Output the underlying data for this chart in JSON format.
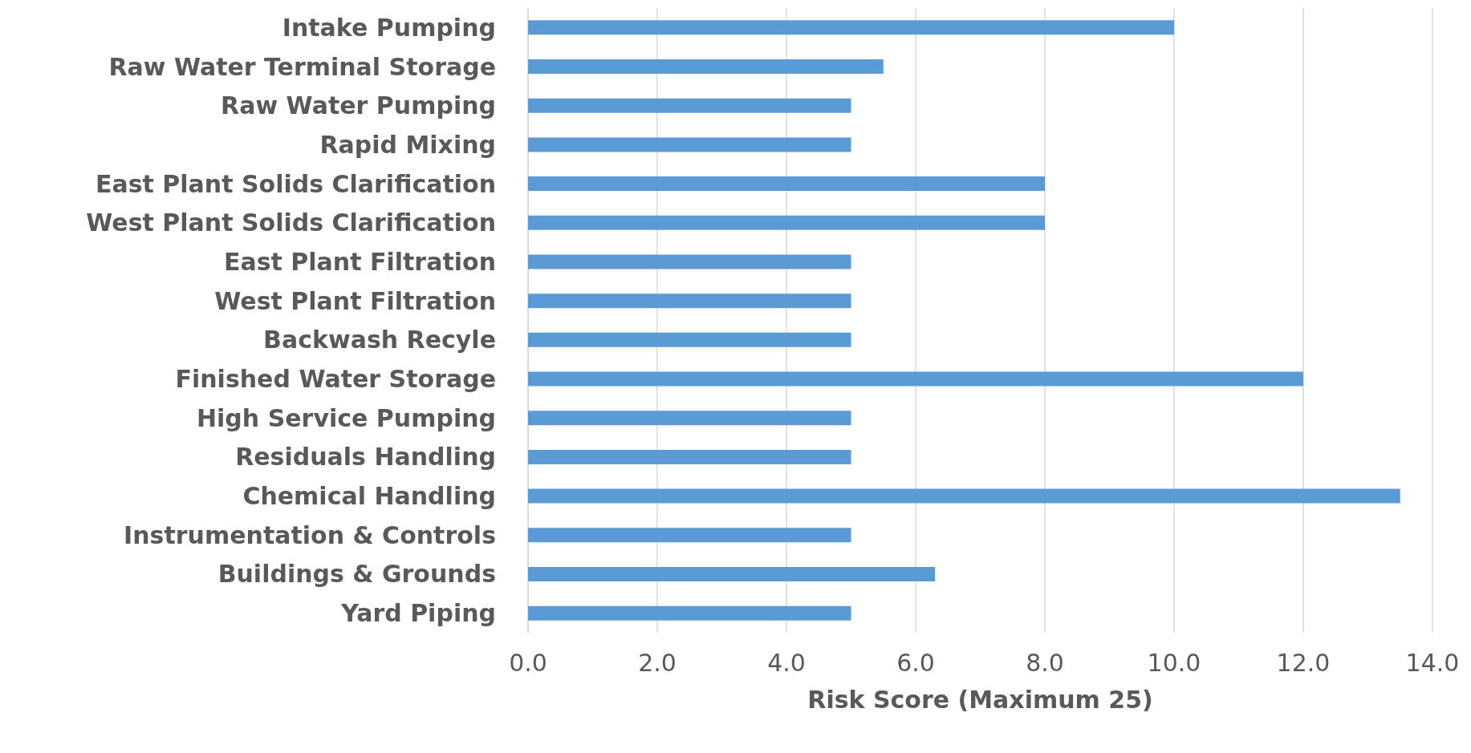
{
  "chart_data": {
    "type": "bar",
    "orientation": "horizontal",
    "xlabel": "Risk Score (Maximum 25)",
    "categories": [
      "Intake Pumping",
      "Raw Water Terminal Storage",
      "Raw Water Pumping",
      "Rapid Mixing",
      "East Plant Solids Clarification",
      "West Plant Solids Clarification",
      "East Plant Filtration",
      "West Plant Filtration",
      "Backwash Recyle",
      "Finished Water Storage",
      "High Service Pumping",
      "Residuals Handling",
      "Chemical Handling",
      "Instrumentation & Controls",
      "Buildings & Grounds",
      "Yard Piping"
    ],
    "values": [
      10,
      5.5,
      5,
      5,
      8,
      8,
      5,
      5,
      5,
      12,
      5,
      5,
      13.5,
      5,
      6.3,
      5
    ],
    "color": "#5b9bd5",
    "xlim": [
      0,
      14
    ],
    "xticks": [
      {
        "value": 0,
        "label": "0.0"
      },
      {
        "value": 2,
        "label": "2.0"
      },
      {
        "value": 4,
        "label": "4.0"
      },
      {
        "value": 6,
        "label": "6.0"
      },
      {
        "value": 8,
        "label": "8.0"
      },
      {
        "value": 10,
        "label": "10.0"
      },
      {
        "value": 12,
        "label": "12.0"
      },
      {
        "value": 14,
        "label": "14.0"
      }
    ],
    "grid": "x"
  }
}
